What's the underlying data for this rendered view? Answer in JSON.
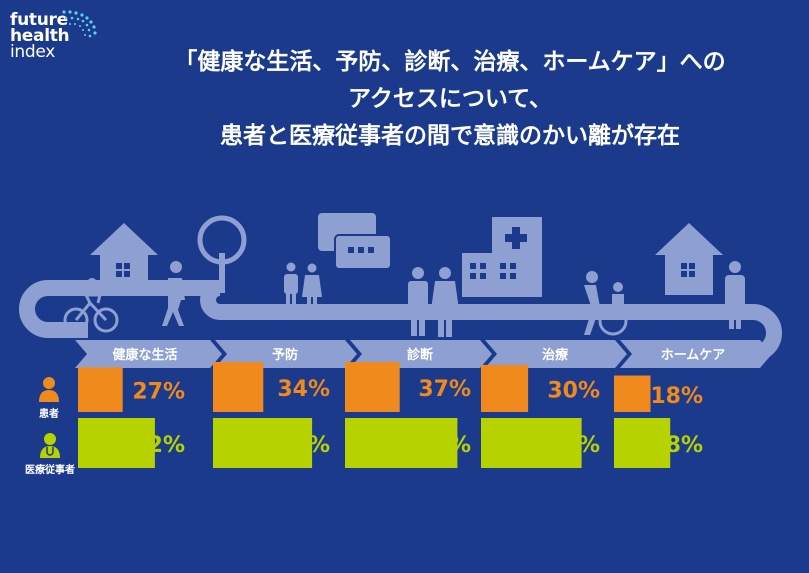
{
  "logo": {
    "line1": "future",
    "line2": "health",
    "line3": "index"
  },
  "title": {
    "line1": "「健康な生活、予防、診断、治療、ホームケア」への",
    "line2": "アクセスについて、",
    "line3": "患者と医療従事者の間で意識のかい離が存在"
  },
  "roles": {
    "patient": "患者",
    "professional": "医療従事者"
  },
  "colors": {
    "background": "#1b3a8c",
    "road": "#8e9fd2",
    "patient": "#f08a1c",
    "professional": "#b6d300"
  },
  "chart_data": {
    "type": "bar",
    "categories": [
      "健康な生活",
      "予防",
      "診断",
      "治療",
      "ホームケア"
    ],
    "series": [
      {
        "name": "患者",
        "values": [
          27,
          34,
          37,
          30,
          18
        ]
      },
      {
        "name": "医療従事者",
        "values": [
          52,
          67,
          76,
          68,
          38
        ]
      }
    ],
    "value_labels": {
      "患者": [
        "27%",
        "34%",
        "37%",
        "30%",
        "18%"
      ],
      "医療従事者": [
        "52%",
        "67%",
        "76%",
        "68%",
        "38%"
      ]
    },
    "ylim": [
      0,
      100
    ]
  }
}
